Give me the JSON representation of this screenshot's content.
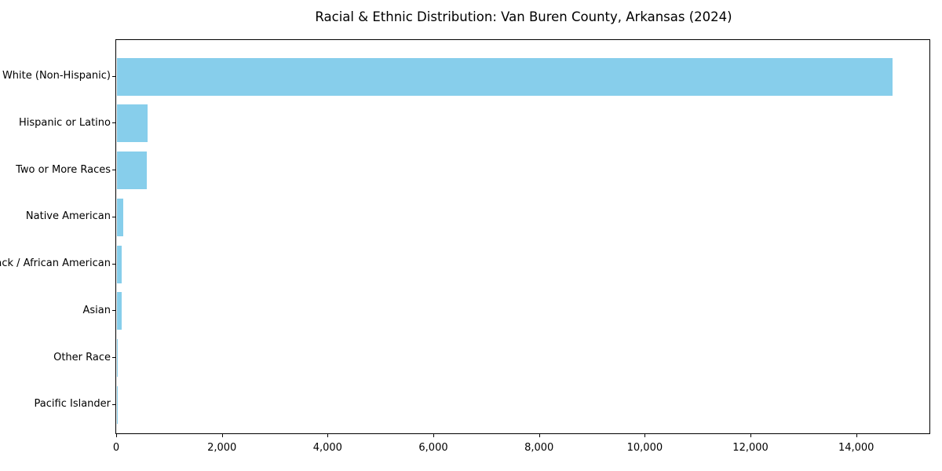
{
  "chart_data": {
    "type": "bar",
    "orientation": "horizontal",
    "title": "Racial & Ethnic Distribution: Van Buren County, Arkansas (2024)",
    "categories": [
      "White (Non-Hispanic)",
      "Hispanic or Latino",
      "Two or More Races",
      "Native American",
      "Black / African American",
      "Asian",
      "Other Race",
      "Pacific Islander"
    ],
    "values": [
      14670,
      580,
      570,
      125,
      90,
      85,
      15,
      5
    ],
    "xlabel": "",
    "ylabel": "",
    "xlim": [
      0,
      15400
    ],
    "x_ticks": [
      0,
      2000,
      4000,
      6000,
      8000,
      10000,
      12000,
      14000
    ],
    "x_tick_labels": [
      "0",
      "2,000",
      "4,000",
      "6,000",
      "8,000",
      "10,000",
      "12,000",
      "14,000"
    ],
    "bar_color": "#87CEEB",
    "grid": false,
    "legend_position": "none"
  }
}
